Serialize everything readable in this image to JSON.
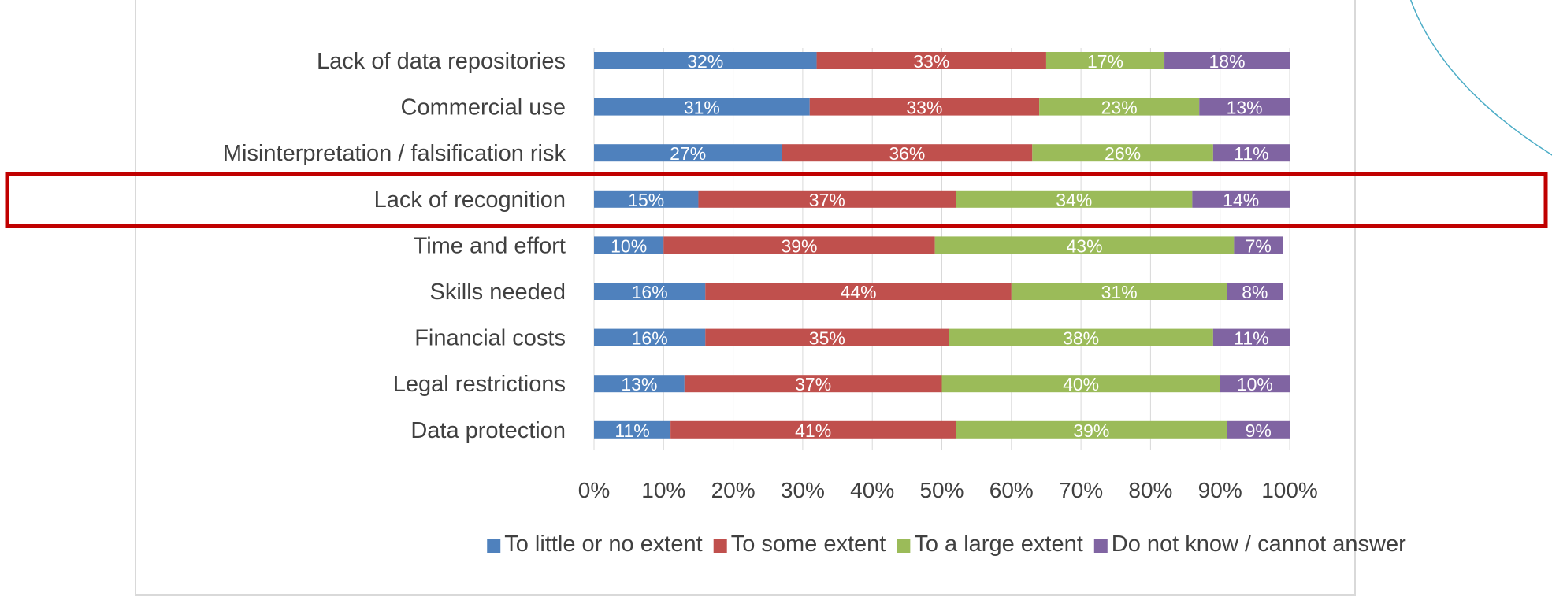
{
  "chart_data": {
    "type": "bar",
    "orientation": "horizontal",
    "stacked": true,
    "percent": true,
    "categories": [
      "Lack of data repositories",
      "Commercial use",
      "Misinterpretation / falsification risk",
      "Lack of recognition",
      "Time and effort",
      "Skills needed",
      "Financial costs",
      "Legal restrictions",
      "Data protection"
    ],
    "series": [
      {
        "name": "To little or no extent",
        "color": "#4f81bd",
        "values": [
          32,
          31,
          27,
          15,
          10,
          16,
          16,
          13,
          11
        ]
      },
      {
        "name": "To some extent",
        "color": "#c0504d",
        "values": [
          33,
          33,
          36,
          37,
          39,
          44,
          35,
          37,
          41
        ]
      },
      {
        "name": "To a large extent",
        "color": "#9bbb59",
        "values": [
          17,
          23,
          26,
          34,
          43,
          31,
          38,
          40,
          39
        ]
      },
      {
        "name": "Do not know / cannot answer",
        "color": "#8064a2",
        "values": [
          18,
          13,
          11,
          14,
          7,
          8,
          11,
          10,
          9
        ]
      }
    ],
    "xlim": [
      0,
      100
    ],
    "x_ticks": [
      "0%",
      "10%",
      "20%",
      "30%",
      "40%",
      "50%",
      "60%",
      "70%",
      "80%",
      "90%",
      "100%"
    ],
    "data_label_suffix": "%",
    "legend_position": "bottom",
    "grid": false,
    "highlighted_category": "Lack of recognition",
    "highlight_color": "#c00000",
    "decoration_color": "#4bacc6"
  }
}
